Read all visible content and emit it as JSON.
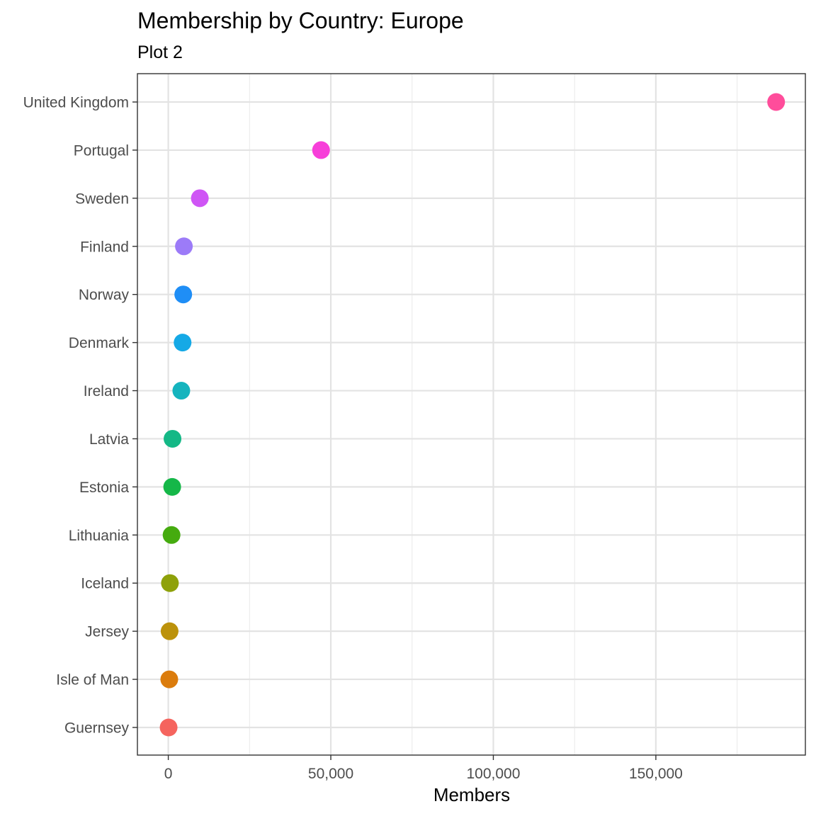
{
  "chart_data": {
    "type": "scatter",
    "title": "Membership by Country: Europe",
    "subtitle": "Plot 2",
    "xlabel": "Members",
    "ylabel": "",
    "xlim": [
      -9500,
      196000
    ],
    "xticks": [
      0,
      50000,
      100000,
      150000
    ],
    "xtick_labels": [
      "0",
      "50,000",
      "100,000",
      "150,000"
    ],
    "grid": true,
    "legend": "none",
    "points": [
      {
        "country": "United Kingdom",
        "value": 187000,
        "color": "#FF4D9B"
      },
      {
        "country": "Portugal",
        "value": 47000,
        "color": "#F73FD9"
      },
      {
        "country": "Sweden",
        "value": 9700,
        "color": "#CF55F5"
      },
      {
        "country": "Finland",
        "value": 4800,
        "color": "#9C7BF8"
      },
      {
        "country": "Norway",
        "value": 4600,
        "color": "#1F8EF6"
      },
      {
        "country": "Denmark",
        "value": 4400,
        "color": "#15A9E6"
      },
      {
        "country": "Ireland",
        "value": 4000,
        "color": "#15B4BE"
      },
      {
        "country": "Latvia",
        "value": 1300,
        "color": "#14B886"
      },
      {
        "country": "Estonia",
        "value": 1200,
        "color": "#15B748"
      },
      {
        "country": "Lithuania",
        "value": 1000,
        "color": "#45AB0F"
      },
      {
        "country": "Iceland",
        "value": 500,
        "color": "#8EA10A"
      },
      {
        "country": "Jersey",
        "value": 400,
        "color": "#BC920B"
      },
      {
        "country": "Isle of Man",
        "value": 300,
        "color": "#DB7C0C"
      },
      {
        "country": "Guernsey",
        "value": 100,
        "color": "#F5645E"
      }
    ]
  }
}
